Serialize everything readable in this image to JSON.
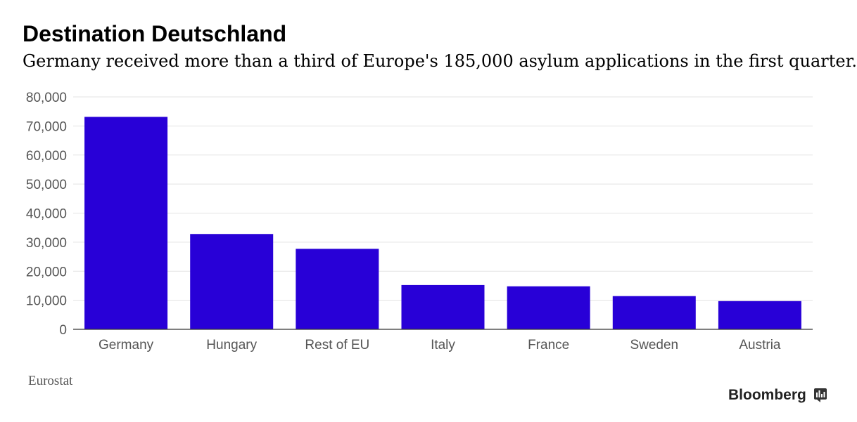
{
  "header": {
    "title": "Destination Deutschland",
    "subtitle": "Germany received more than a third of Europe's 185,000 asylum applications in the first quarter."
  },
  "footer": {
    "source": "Eurostat",
    "brand": "Bloomberg",
    "brand_icon": "bloomberg-chart-icon"
  },
  "colors": {
    "bar": "#2800d7",
    "grid": "#e3e3e3",
    "axis": "#333333",
    "tick_text": "#555555"
  },
  "chart_data": {
    "type": "bar",
    "title": "Destination Deutschland",
    "subtitle": "Germany received more than a third of Europe's 185,000 asylum applications in the first quarter.",
    "categories": [
      "Germany",
      "Hungary",
      "Rest of EU",
      "Italy",
      "France",
      "Sweden",
      "Austria"
    ],
    "values": [
      73120,
      32810,
      27700,
      15250,
      14800,
      11430,
      9710
    ],
    "xlabel": "",
    "ylabel": "",
    "ylim": [
      0,
      80000
    ],
    "yticks": [
      0,
      10000,
      20000,
      30000,
      40000,
      50000,
      60000,
      70000,
      80000
    ],
    "ytick_labels": [
      "0",
      "10,000",
      "20,000",
      "30,000",
      "40,000",
      "50,000",
      "60,000",
      "70,000",
      "80,000"
    ],
    "grid": true,
    "legend": "none"
  }
}
